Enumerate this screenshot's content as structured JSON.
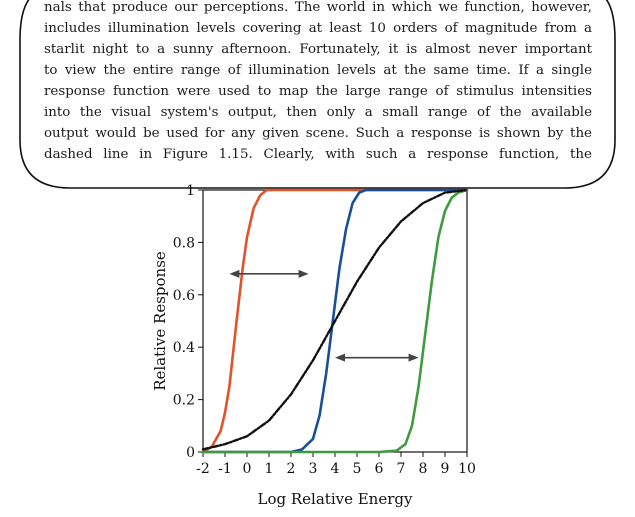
{
  "text_lines": [
    "nals that produce our perceptions. The world in which we function, however,",
    "includes illumination levels covering at least 10 orders of magnitude from a",
    "starlit night to a sunny afternoon. Fortunately, it is almost never important",
    "to view the entire range of illumination levels at the same time. If a single",
    "response function were used to map the large range of stimulus intensities",
    "into the visual system's output, then only a small range of the available",
    "output would be used for any given scene. Such a response is shown by the",
    "dashed line in Figure 1.15. Clearly, with such a response function, the"
  ],
  "chart_data": {
    "type": "line",
    "xlabel": "Log Relative Energy",
    "ylabel": "Relative Response",
    "xlim": [
      -2,
      10
    ],
    "ylim": [
      0,
      1
    ],
    "x_ticks": [
      -2,
      -1,
      0,
      1,
      2,
      3,
      4,
      5,
      6,
      7,
      8,
      9,
      10
    ],
    "y_ticks": [
      0,
      0.2,
      0.4,
      0.6,
      0.8,
      1
    ],
    "y_tick_labels": [
      "0",
      "0.2",
      "0.4",
      "0.6",
      "0.8",
      "1"
    ],
    "series": [
      {
        "color": "#e2522b",
        "style": "solid",
        "x": [
          -2,
          -1.6,
          -1.2,
          -1.0,
          -0.8,
          -0.5,
          -0.2,
          0.0,
          0.3,
          0.6,
          0.9,
          1.2,
          2,
          4,
          6,
          8,
          10
        ],
        "y": [
          0,
          0.02,
          0.08,
          0.15,
          0.25,
          0.48,
          0.7,
          0.82,
          0.93,
          0.98,
          1,
          1,
          1,
          1,
          1,
          1,
          1
        ]
      },
      {
        "color": "#1a4f96",
        "style": "solid",
        "x": [
          -2,
          0,
          2,
          2.5,
          3.0,
          3.3,
          3.6,
          3.9,
          4.2,
          4.5,
          4.8,
          5.1,
          5.4,
          6,
          8,
          10
        ],
        "y": [
          0,
          0,
          0,
          0.01,
          0.05,
          0.14,
          0.3,
          0.5,
          0.7,
          0.85,
          0.95,
          0.99,
          1,
          1,
          1,
          1
        ]
      },
      {
        "color": "#3f9a3f",
        "style": "solid",
        "x": [
          -2,
          0,
          2,
          4,
          6,
          6.8,
          7.2,
          7.5,
          7.8,
          8.1,
          8.4,
          8.7,
          9.0,
          9.3,
          9.6,
          10
        ],
        "y": [
          0,
          0,
          0,
          0,
          0,
          0.005,
          0.03,
          0.1,
          0.25,
          0.45,
          0.65,
          0.82,
          0.92,
          0.97,
          0.99,
          1
        ]
      },
      {
        "color": "#111111",
        "style": "dashdot",
        "x": [
          -2,
          -1,
          0,
          1,
          2,
          3,
          4,
          5,
          6,
          7,
          8,
          9,
          10
        ],
        "y": [
          0.01,
          0.03,
          0.06,
          0.12,
          0.22,
          0.35,
          0.5,
          0.65,
          0.78,
          0.88,
          0.95,
          0.99,
          1
        ]
      }
    ],
    "arrows": [
      {
        "direction": "both",
        "x_from": -0.8,
        "x_to": 2.8,
        "y": 0.68
      },
      {
        "direction": "both",
        "x_from": 4.0,
        "x_to": 7.8,
        "y": 0.36
      }
    ]
  }
}
